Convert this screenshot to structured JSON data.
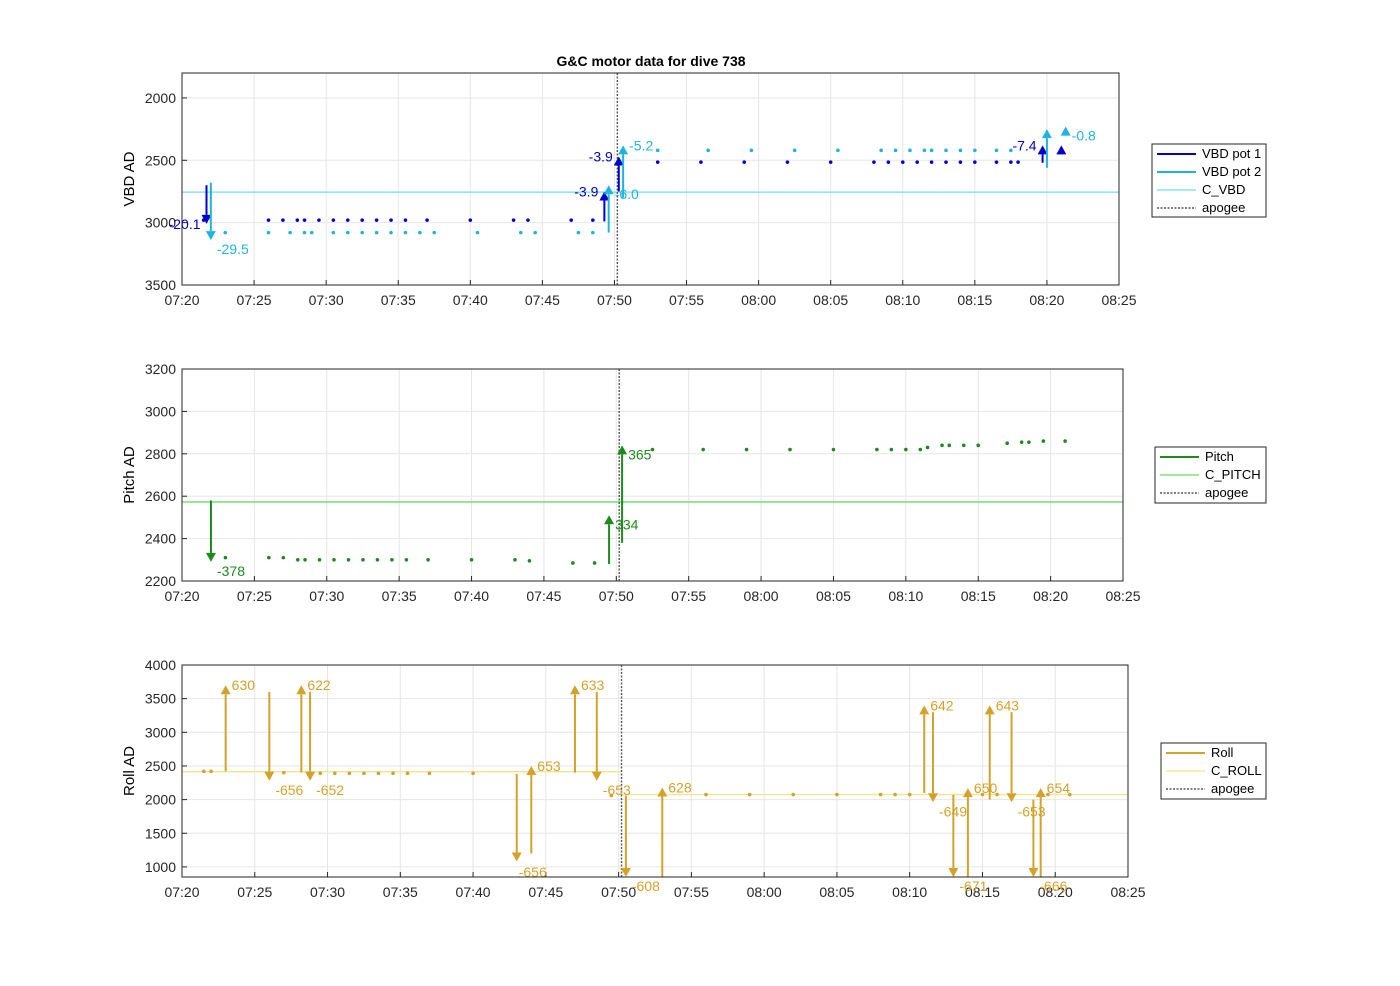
{
  "figure_title": "G&C motor data for dive 738",
  "chart_data": [
    {
      "id": "vbd",
      "type": "line",
      "ylabel": "VBD AD",
      "xlabel": "",
      "xlim": [
        "07:20",
        "08:25"
      ],
      "ylim": [
        1800,
        3500
      ],
      "y_reversed": true,
      "yticks": [
        2000,
        2500,
        3000,
        3500
      ],
      "xticks": [
        "07:20",
        "07:25",
        "07:30",
        "07:35",
        "07:40",
        "07:45",
        "07:50",
        "07:55",
        "08:00",
        "08:05",
        "08:10",
        "08:15",
        "08:20",
        "08:25"
      ],
      "grid": true,
      "legend_position": "outside-right",
      "legend": [
        {
          "label": "VBD pot 1",
          "style": "thick",
          "color": "#0000cc"
        },
        {
          "label": "VBD pot 2",
          "style": "thick",
          "color": "#1fb4e0"
        },
        {
          "label": "C_VBD",
          "style": "thin",
          "color": "#6fe0ea"
        },
        {
          "label": "apogee",
          "style": "dotted",
          "color": "#555555"
        }
      ],
      "reference_lines": [
        {
          "name": "C_VBD",
          "y": 2755,
          "color": "#6fe0ea"
        }
      ],
      "apogee": "07:50.2",
      "series": [
        {
          "name": "VBD pot 1",
          "color": "#0000cc",
          "points": [
            [
              "07:21.5",
              2980
            ],
            [
              "07:26",
              2980
            ],
            [
              "07:27",
              2980
            ],
            [
              "07:28",
              2980
            ],
            [
              "07:28.5",
              2980
            ],
            [
              "07:29.5",
              2980
            ],
            [
              "07:30.5",
              2980
            ],
            [
              "07:31.5",
              2980
            ],
            [
              "07:32.5",
              2980
            ],
            [
              "07:33.5",
              2980
            ],
            [
              "07:34.5",
              2980
            ],
            [
              "07:35.5",
              2980
            ],
            [
              "07:37",
              2980
            ],
            [
              "07:40",
              2980
            ],
            [
              "07:43",
              2980
            ],
            [
              "07:44",
              2980
            ],
            [
              "07:47",
              2980
            ],
            [
              "07:48.5",
              2980
            ],
            [
              "07:53",
              2515
            ],
            [
              "07:56",
              2515
            ],
            [
              "07:59",
              2515
            ],
            [
              "08:02",
              2515
            ],
            [
              "08:05",
              2515
            ],
            [
              "08:08",
              2515
            ],
            [
              "08:09",
              2515
            ],
            [
              "08:10",
              2515
            ],
            [
              "08:11",
              2515
            ],
            [
              "08:12",
              2515
            ],
            [
              "08:13",
              2515
            ],
            [
              "08:14",
              2515
            ],
            [
              "08:15",
              2515
            ],
            [
              "08:16.5",
              2515
            ],
            [
              "08:17.5",
              2515
            ],
            [
              "08:18",
              2515
            ]
          ],
          "arrows": [
            {
              "x": "07:21.7",
              "from": 2700,
              "to": 3010,
              "label": "-20.1",
              "label_side": "left"
            },
            {
              "x": "07:49.3",
              "from": 2990,
              "to": 2750,
              "label": "-3.9",
              "label_side": "left"
            },
            {
              "x": "07:50.3",
              "from": 2750,
              "to": 2470,
              "label": "-3.9",
              "label_side": "left"
            },
            {
              "x": "08:19.7",
              "from": 2520,
              "to": 2380,
              "label": "-7.4",
              "label_side": "left"
            },
            {
              "x": "08:21",
              "from": 2420,
              "to": 2380,
              "label": "",
              "label_side": "right"
            }
          ]
        },
        {
          "name": "VBD pot 2",
          "color": "#1fb4e0",
          "points": [
            [
              "07:23",
              3080
            ],
            [
              "07:26",
              3080
            ],
            [
              "07:27.5",
              3080
            ],
            [
              "07:28.5",
              3080
            ],
            [
              "07:29",
              3080
            ],
            [
              "07:30.5",
              3080
            ],
            [
              "07:31.5",
              3080
            ],
            [
              "07:32.5",
              3080
            ],
            [
              "07:33.5",
              3080
            ],
            [
              "07:34.5",
              3080
            ],
            [
              "07:35.5",
              3080
            ],
            [
              "07:36.5",
              3080
            ],
            [
              "07:37.5",
              3080
            ],
            [
              "07:40.5",
              3080
            ],
            [
              "07:43.5",
              3080
            ],
            [
              "07:44.5",
              3080
            ],
            [
              "07:47.5",
              3080
            ],
            [
              "07:48.5",
              3080
            ],
            [
              "07:53",
              2420
            ],
            [
              "07:56.5",
              2420
            ],
            [
              "07:59.5",
              2420
            ],
            [
              "08:02.5",
              2420
            ],
            [
              "08:05.5",
              2420
            ],
            [
              "08:08.5",
              2420
            ],
            [
              "08:09.5",
              2420
            ],
            [
              "08:10.5",
              2420
            ],
            [
              "08:11.5",
              2420
            ],
            [
              "08:12",
              2420
            ],
            [
              "08:13",
              2420
            ],
            [
              "08:14",
              2420
            ],
            [
              "08:15",
              2420
            ],
            [
              "08:16.5",
              2420
            ],
            [
              "08:17.5",
              2420
            ]
          ],
          "arrows": [
            {
              "x": "07:22",
              "from": 2680,
              "to": 3140,
              "label": "-29.5",
              "label_side": "right-below"
            },
            {
              "x": "07:49.6",
              "from": 3080,
              "to": 2700,
              "label": "-6.0",
              "label_side": "right-below"
            },
            {
              "x": "07:50.6",
              "from": 2800,
              "to": 2380,
              "label": "-5.2",
              "label_side": "right"
            },
            {
              "x": "08:20",
              "from": 2560,
              "to": 2250,
              "label": "",
              "label_side": "right"
            },
            {
              "x": "08:21.3",
              "from": 2240,
              "to": 2230,
              "label": "-0.8",
              "label_side": "right-below"
            }
          ]
        }
      ]
    },
    {
      "id": "pitch",
      "type": "line",
      "ylabel": "Pitch AD",
      "xlabel": "",
      "xlim": [
        "07:20",
        "08:25"
      ],
      "ylim": [
        2200,
        3200
      ],
      "y_reversed": false,
      "yticks": [
        2200,
        2400,
        2600,
        2800,
        3000,
        3200
      ],
      "xticks": [
        "07:20",
        "07:25",
        "07:30",
        "07:35",
        "07:40",
        "07:45",
        "07:50",
        "07:55",
        "08:00",
        "08:05",
        "08:10",
        "08:15",
        "08:20",
        "08:25"
      ],
      "grid": true,
      "legend_position": "outside-right",
      "legend": [
        {
          "label": "Pitch",
          "style": "thick",
          "color": "#1e8a1e"
        },
        {
          "label": "C_PITCH",
          "style": "thin",
          "color": "#66dd66"
        },
        {
          "label": "apogee",
          "style": "dotted",
          "color": "#555555"
        }
      ],
      "reference_lines": [
        {
          "name": "C_PITCH",
          "y": 2573,
          "color": "#66dd66"
        }
      ],
      "apogee": "07:50.2",
      "series": [
        {
          "name": "Pitch",
          "color": "#1e8a1e",
          "points": [
            [
              "07:23",
              2310
            ],
            [
              "07:26",
              2310
            ],
            [
              "07:27",
              2310
            ],
            [
              "07:28",
              2300
            ],
            [
              "07:28.5",
              2300
            ],
            [
              "07:29.5",
              2300
            ],
            [
              "07:30.5",
              2300
            ],
            [
              "07:31.5",
              2300
            ],
            [
              "07:32.5",
              2300
            ],
            [
              "07:33.5",
              2300
            ],
            [
              "07:34.5",
              2300
            ],
            [
              "07:35.5",
              2300
            ],
            [
              "07:37",
              2300
            ],
            [
              "07:40",
              2300
            ],
            [
              "07:43",
              2300
            ],
            [
              "07:44",
              2295
            ],
            [
              "07:47",
              2285
            ],
            [
              "07:48.5",
              2285
            ],
            [
              "07:52.5",
              2820
            ],
            [
              "07:56",
              2820
            ],
            [
              "07:59",
              2820
            ],
            [
              "08:02",
              2820
            ],
            [
              "08:05",
              2820
            ],
            [
              "08:08",
              2820
            ],
            [
              "08:09",
              2820
            ],
            [
              "08:10",
              2820
            ],
            [
              "08:11",
              2820
            ],
            [
              "08:11.5",
              2830
            ],
            [
              "08:12.5",
              2840
            ],
            [
              "08:13",
              2840
            ],
            [
              "08:14",
              2840
            ],
            [
              "08:15",
              2840
            ],
            [
              "08:17",
              2850
            ],
            [
              "08:18",
              2855
            ],
            [
              "08:18.5",
              2855
            ],
            [
              "08:19.5",
              2860
            ],
            [
              "08:21",
              2860
            ]
          ],
          "arrows": [
            {
              "x": "07:22",
              "from": 2580,
              "to": 2290,
              "label": "-378",
              "label_side": "right-below"
            },
            {
              "x": "07:49.5",
              "from": 2280,
              "to": 2510,
              "label": "334",
              "label_side": "right-below"
            },
            {
              "x": "07:50.4",
              "from": 2380,
              "to": 2840,
              "label": "365",
              "label_side": "right-below"
            }
          ]
        }
      ]
    },
    {
      "id": "roll",
      "type": "line",
      "ylabel": "Roll AD",
      "xlabel": "",
      "xlim": [
        "07:20",
        "08:25"
      ],
      "ylim": [
        850,
        4000
      ],
      "y_reversed": false,
      "yticks": [
        1000,
        1500,
        2000,
        2500,
        3000,
        3500,
        4000
      ],
      "xticks": [
        "07:20",
        "07:25",
        "07:30",
        "07:35",
        "07:40",
        "07:45",
        "07:50",
        "07:55",
        "08:00",
        "08:05",
        "08:10",
        "08:15",
        "08:20",
        "08:25"
      ],
      "grid": true,
      "legend_position": "outside-right",
      "legend": [
        {
          "label": "Roll",
          "style": "thick",
          "color": "#d4a22b"
        },
        {
          "label": "C_ROLL",
          "style": "thin",
          "color": "#f5e58a"
        },
        {
          "label": "apogee",
          "style": "dotted",
          "color": "#555555"
        }
      ],
      "reference_lines": [
        {
          "name": "C_ROLL",
          "y": 2415,
          "xmax": "07:50.2",
          "color": "#f5e58a"
        },
        {
          "name": "C_ROLL",
          "y": 2075,
          "xmin": "07:50.2",
          "color": "#f5e58a"
        }
      ],
      "apogee": "07:50.2",
      "series": [
        {
          "name": "Roll",
          "color": "#d4a22b",
          "points": [
            [
              "07:21.5",
              2420
            ],
            [
              "07:22",
              2420
            ],
            [
              "07:27",
              2400
            ],
            [
              "07:29.5",
              2390
            ],
            [
              "07:30.5",
              2390
            ],
            [
              "07:31.5",
              2390
            ],
            [
              "07:32.5",
              2390
            ],
            [
              "07:33.5",
              2390
            ],
            [
              "07:34.5",
              2390
            ],
            [
              "07:35.5",
              2390
            ],
            [
              "07:37",
              2390
            ],
            [
              "07:40",
              2390
            ],
            [
              "07:49.5",
              2060
            ],
            [
              "07:56",
              2075
            ],
            [
              "07:59",
              2075
            ],
            [
              "08:02",
              2075
            ],
            [
              "08:05",
              2075
            ],
            [
              "08:08",
              2075
            ],
            [
              "08:09",
              2075
            ],
            [
              "08:10",
              2075
            ],
            [
              "08:15",
              2075
            ],
            [
              "08:16",
              2075
            ],
            [
              "08:19.5",
              2075
            ],
            [
              "08:21",
              2075
            ]
          ],
          "arrows": [
            {
              "x": "07:23",
              "from": 2420,
              "to": 3700,
              "label": "630",
              "label_side": "right"
            },
            {
              "x": "07:26",
              "from": 3600,
              "to": 2280,
              "label": "-656",
              "label_side": "right-below"
            },
            {
              "x": "07:28.2",
              "from": 2400,
              "to": 3700,
              "label": "622",
              "label_side": "right"
            },
            {
              "x": "07:28.8",
              "from": 3600,
              "to": 2280,
              "label": "-652",
              "label_side": "right-below"
            },
            {
              "x": "07:43",
              "from": 2380,
              "to": 1080,
              "label": "",
              "label_side": "right"
            },
            {
              "x": "07:44",
              "from": 1200,
              "to": 2500,
              "label": "653",
              "label_side": "right"
            },
            {
              "x": "07:47",
              "from": 2400,
              "to": 3700,
              "label": "633",
              "label_side": "right"
            },
            {
              "x": "07:48.5",
              "from": 3600,
              "to": 2280,
              "label": "-653",
              "label_side": "right-below"
            },
            {
              "x": "07:50.5",
              "from": 2060,
              "to": 850,
              "label": "-608",
              "label_side": "right-below"
            },
            {
              "x": "07:53",
              "from": 850,
              "to": 2180,
              "label": "628",
              "label_side": "right"
            },
            {
              "x": "08:11",
              "from": 2100,
              "to": 3400,
              "label": "642",
              "label_side": "right"
            },
            {
              "x": "08:11.6",
              "from": 3300,
              "to": 1960,
              "label": "-649",
              "label_side": "right-below"
            },
            {
              "x": "08:13",
              "from": 2070,
              "to": 850,
              "label": "-671",
              "label_side": "right-below"
            },
            {
              "x": "08:14",
              "from": 850,
              "to": 2170,
              "label": "650",
              "label_side": "right"
            },
            {
              "x": "08:15.5",
              "from": 2000,
              "to": 3400,
              "label": "643",
              "label_side": "right"
            },
            {
              "x": "08:17",
              "from": 3300,
              "to": 1960,
              "label": "-653",
              "label_side": "right-below"
            },
            {
              "x": "08:18.5",
              "from": 2000,
              "to": 850,
              "label": "-666",
              "label_side": "right-below"
            },
            {
              "x": "08:19",
              "from": 850,
              "to": 2170,
              "label": "654",
              "label_side": "right"
            }
          ],
          "free_labels": [
            {
              "x": "07:43",
              "y": 1000,
              "text": "-656"
            }
          ]
        }
      ]
    }
  ]
}
